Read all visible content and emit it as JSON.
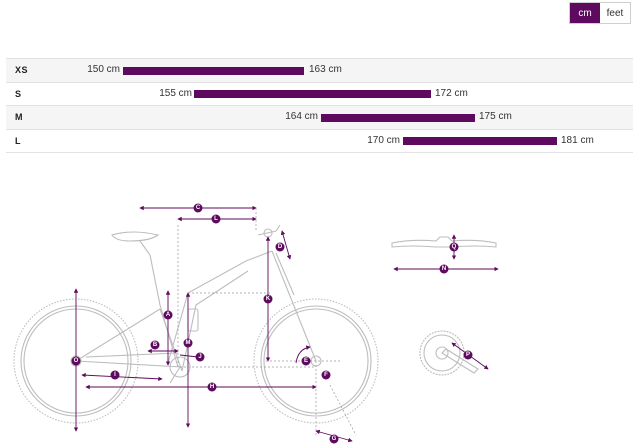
{
  "unit_toggle": {
    "options": [
      "cm",
      "feet"
    ],
    "selected": "cm"
  },
  "sizes": [
    {
      "name": "XS",
      "min": "150 cm",
      "max": "163 cm"
    },
    {
      "name": "S",
      "min": "155 cm",
      "max": "172 cm"
    },
    {
      "name": "M",
      "min": "164 cm",
      "max": "175 cm"
    },
    {
      "name": "L",
      "min": "170 cm",
      "max": "181 cm"
    }
  ],
  "geometry_labels": [
    "A",
    "B",
    "C",
    "D",
    "E",
    "F",
    "G",
    "H",
    "I",
    "J",
    "K",
    "L",
    "M",
    "N",
    "O",
    "P",
    "Q"
  ],
  "colors": {
    "accent": "#5e0a5e",
    "line": "#bfbfbf",
    "row_alt": "#f5f5f5"
  }
}
